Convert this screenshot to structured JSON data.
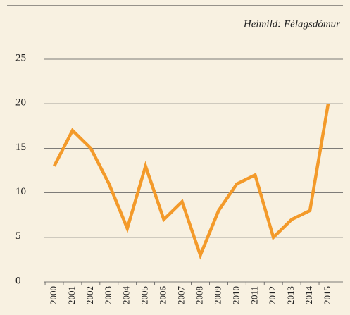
{
  "chart_data": {
    "type": "line",
    "annotation": "Heimild: Félagsdómur",
    "categories": [
      "2000",
      "2001",
      "2002",
      "2003",
      "2004",
      "2005",
      "2006",
      "2007",
      "2008",
      "2009",
      "2010",
      "2011",
      "2012",
      "2013",
      "2014",
      "2015"
    ],
    "values": [
      13,
      17,
      15,
      11,
      6,
      13,
      7,
      9,
      3,
      8,
      11,
      12,
      5,
      7,
      8,
      20
    ],
    "color": "#f39a2a",
    "ylim": [
      0,
      25
    ],
    "yticks": [
      0,
      5,
      10,
      15,
      20,
      25
    ],
    "grid": true
  }
}
